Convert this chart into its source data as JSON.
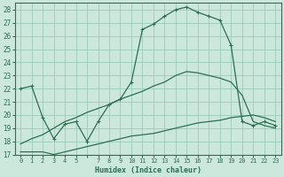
{
  "bg_color": "#cce8dc",
  "grid_color": "#99ccbb",
  "line_color": "#2d6e55",
  "xlabel": "Humidex (Indice chaleur)",
  "xlim": [
    -0.5,
    23.5
  ],
  "ylim": [
    17,
    28.5
  ],
  "xtick_vals": [
    0,
    1,
    2,
    3,
    4,
    5,
    6,
    7,
    8,
    9,
    10,
    11,
    12,
    13,
    14,
    15,
    16,
    17,
    18,
    19,
    20,
    21,
    22,
    23
  ],
  "xtick_labels": [
    "0",
    "1",
    "2",
    "3",
    "4",
    "5",
    "",
    "7",
    "8",
    "9",
    "10",
    "11",
    "12",
    "13",
    "14",
    "15",
    "16",
    "17",
    "18",
    "19",
    "20",
    "21",
    "22",
    "23"
  ],
  "ytick_vals": [
    17,
    18,
    19,
    20,
    21,
    22,
    23,
    24,
    25,
    26,
    27,
    28
  ],
  "curve1_x": [
    0,
    1,
    2,
    3,
    4,
    5,
    6,
    7,
    8,
    9,
    10,
    11,
    12,
    13,
    14,
    15,
    16,
    17,
    18,
    19,
    20,
    21,
    22,
    23
  ],
  "curve1_y": [
    22.0,
    22.2,
    19.8,
    18.2,
    19.3,
    19.5,
    18.0,
    19.5,
    20.8,
    21.2,
    22.5,
    26.5,
    26.9,
    27.5,
    28.0,
    28.2,
    27.8,
    27.5,
    27.2,
    25.3,
    19.5,
    19.2,
    19.5,
    19.2
  ],
  "curve2_x": [
    0,
    1,
    2,
    3,
    4,
    5,
    6,
    7,
    8,
    9,
    10,
    11,
    12,
    13,
    14,
    15,
    16,
    17,
    18,
    19,
    20,
    21,
    22,
    23
  ],
  "curve2_y": [
    17.2,
    17.2,
    17.2,
    17.0,
    17.2,
    17.4,
    17.6,
    17.8,
    18.0,
    18.2,
    18.4,
    18.5,
    18.6,
    18.8,
    19.0,
    19.2,
    19.4,
    19.5,
    19.6,
    19.8,
    19.9,
    20.0,
    19.8,
    19.5
  ],
  "curve3_x": [
    0,
    1,
    2,
    3,
    4,
    5,
    6,
    7,
    8,
    9,
    10,
    11,
    12,
    13,
    14,
    15,
    16,
    17,
    18,
    19,
    20,
    21,
    22,
    23
  ],
  "curve3_y": [
    17.8,
    18.2,
    18.5,
    19.0,
    19.5,
    19.8,
    20.2,
    20.5,
    20.8,
    21.2,
    21.5,
    21.8,
    22.2,
    22.5,
    23.0,
    23.3,
    23.2,
    23.0,
    22.8,
    22.5,
    21.5,
    19.5,
    19.2,
    19.0
  ]
}
